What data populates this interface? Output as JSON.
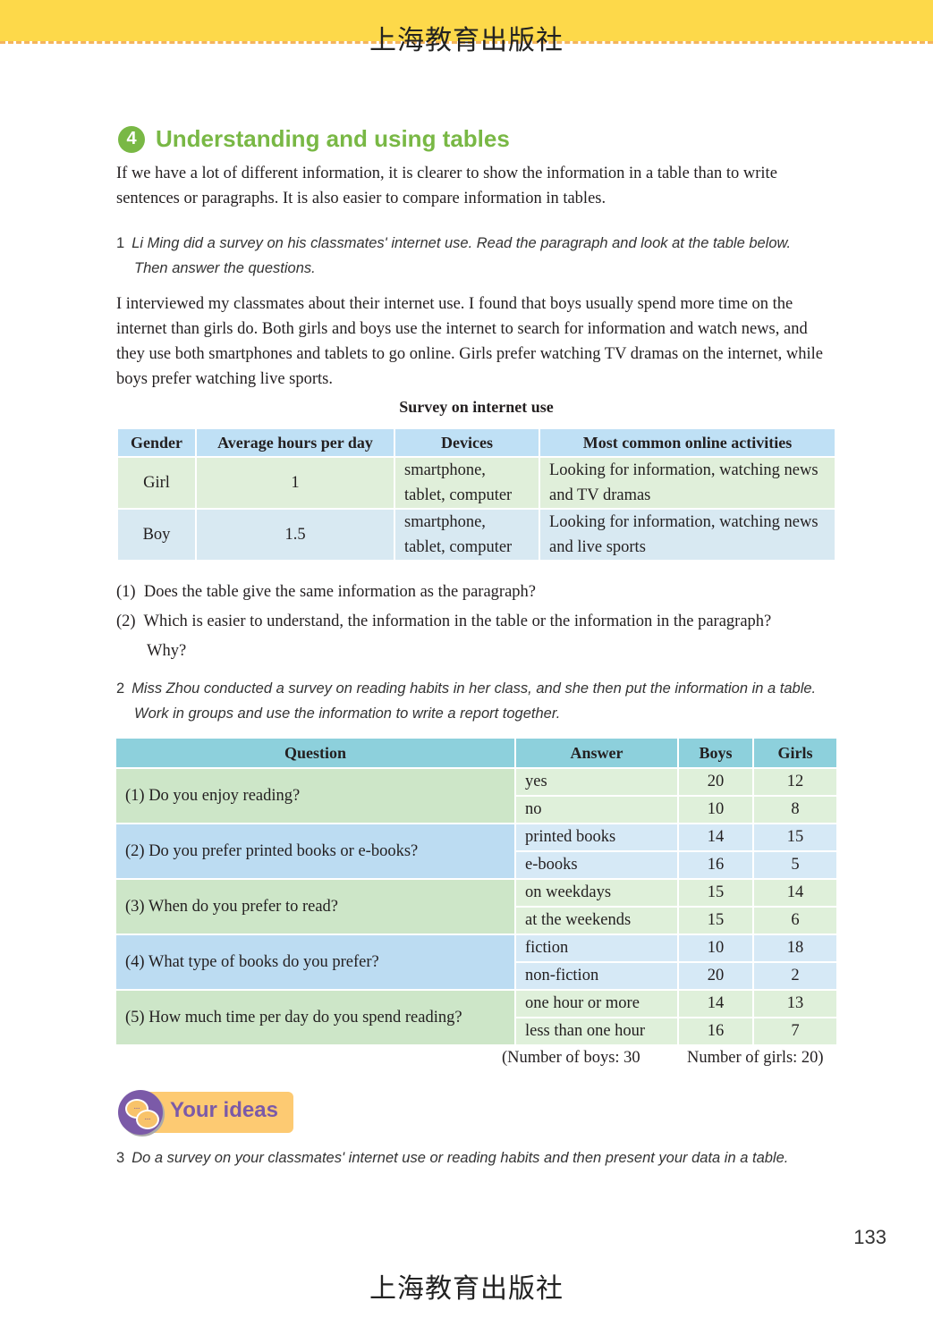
{
  "publisher": "上海教育出版社",
  "section": {
    "number": "4",
    "title": "Understanding and using tables"
  },
  "intro": "If we have a lot of different information, it is clearer to show the information in a table than to write sentences or paragraphs. It is also easier to compare information in tables.",
  "task1": {
    "number": "1",
    "instruction_line1": "Li Ming did a survey on his classmates' internet use. Read the paragraph and look at the table below.",
    "instruction_line2": "Then answer the questions.",
    "paragraph": "I interviewed my classmates about their internet use. I found that boys usually spend more time on the internet than girls do. Both girls and boys use the internet to search for information and watch news, and they use both smartphones and tablets to go online. Girls prefer watching TV dramas on the internet, while boys prefer watching live sports.",
    "table_title": "Survey on internet use",
    "headers": [
      "Gender",
      "Average hours per day",
      "Devices",
      "Most common online activities"
    ],
    "rows": [
      {
        "gender": "Girl",
        "hours": "1",
        "devices": "smartphone, tablet, computer",
        "activities": "Looking for information, watching news and TV dramas"
      },
      {
        "gender": "Boy",
        "hours": "1.5",
        "devices": "smartphone, tablet, computer",
        "activities": "Looking for information, watching news and live sports"
      }
    ],
    "questions": [
      {
        "label": "(1)",
        "text": "Does the table give the same information as the paragraph?"
      },
      {
        "label": "(2)",
        "text": "Which is easier to understand, the information in the table or the information in the paragraph?",
        "text2": "Why?"
      }
    ]
  },
  "task2": {
    "number": "2",
    "instruction_line1": "Miss Zhou conducted a survey on reading habits in her class, and she then put the information in a table.",
    "instruction_line2": "Work in groups and use the information to write a report together.",
    "headers": [
      "Question",
      "Answer",
      "Boys",
      "Girls"
    ],
    "rows": [
      {
        "question": "(1)  Do you enjoy reading?",
        "answers": [
          {
            "answer": "yes",
            "boys": "20",
            "girls": "12"
          },
          {
            "answer": "no",
            "boys": "10",
            "girls": "8"
          }
        ]
      },
      {
        "question": "(2)  Do you prefer printed books or e-books?",
        "answers": [
          {
            "answer": "printed books",
            "boys": "14",
            "girls": "15"
          },
          {
            "answer": "e-books",
            "boys": "16",
            "girls": "5"
          }
        ]
      },
      {
        "question": "(3)  When do you prefer to read?",
        "answers": [
          {
            "answer": "on weekdays",
            "boys": "15",
            "girls": "14"
          },
          {
            "answer": "at the weekends",
            "boys": "15",
            "girls": "6"
          }
        ]
      },
      {
        "question": "(4)  What type of books do you prefer?",
        "answers": [
          {
            "answer": "fiction",
            "boys": "10",
            "girls": "18"
          },
          {
            "answer": "non-fiction",
            "boys": "20",
            "girls": "2"
          }
        ]
      },
      {
        "question": "(5)  How much time per day do you spend reading?",
        "answers": [
          {
            "answer": "one hour or more",
            "boys": "14",
            "girls": "13"
          },
          {
            "answer": "less than one hour",
            "boys": "16",
            "girls": "7"
          }
        ]
      }
    ],
    "note_boys": "(Number of boys: 30",
    "note_girls": "Number of girls: 20)"
  },
  "your_ideas": {
    "label": "Your ideas",
    "bubble": "..."
  },
  "task3": {
    "number": "3",
    "instruction": "Do a survey on your classmates' internet use or reading habits and then present your data in a table."
  },
  "page_number": "133",
  "colors": {
    "banner": "#fdd94a",
    "heading": "#79b845",
    "header_blue": "#bfe0f5",
    "header_teal": "#8dd0dc",
    "green_row": "#dff0da",
    "blue_row": "#d6e9f6",
    "your_ideas_purple": "#7b5aa8"
  }
}
